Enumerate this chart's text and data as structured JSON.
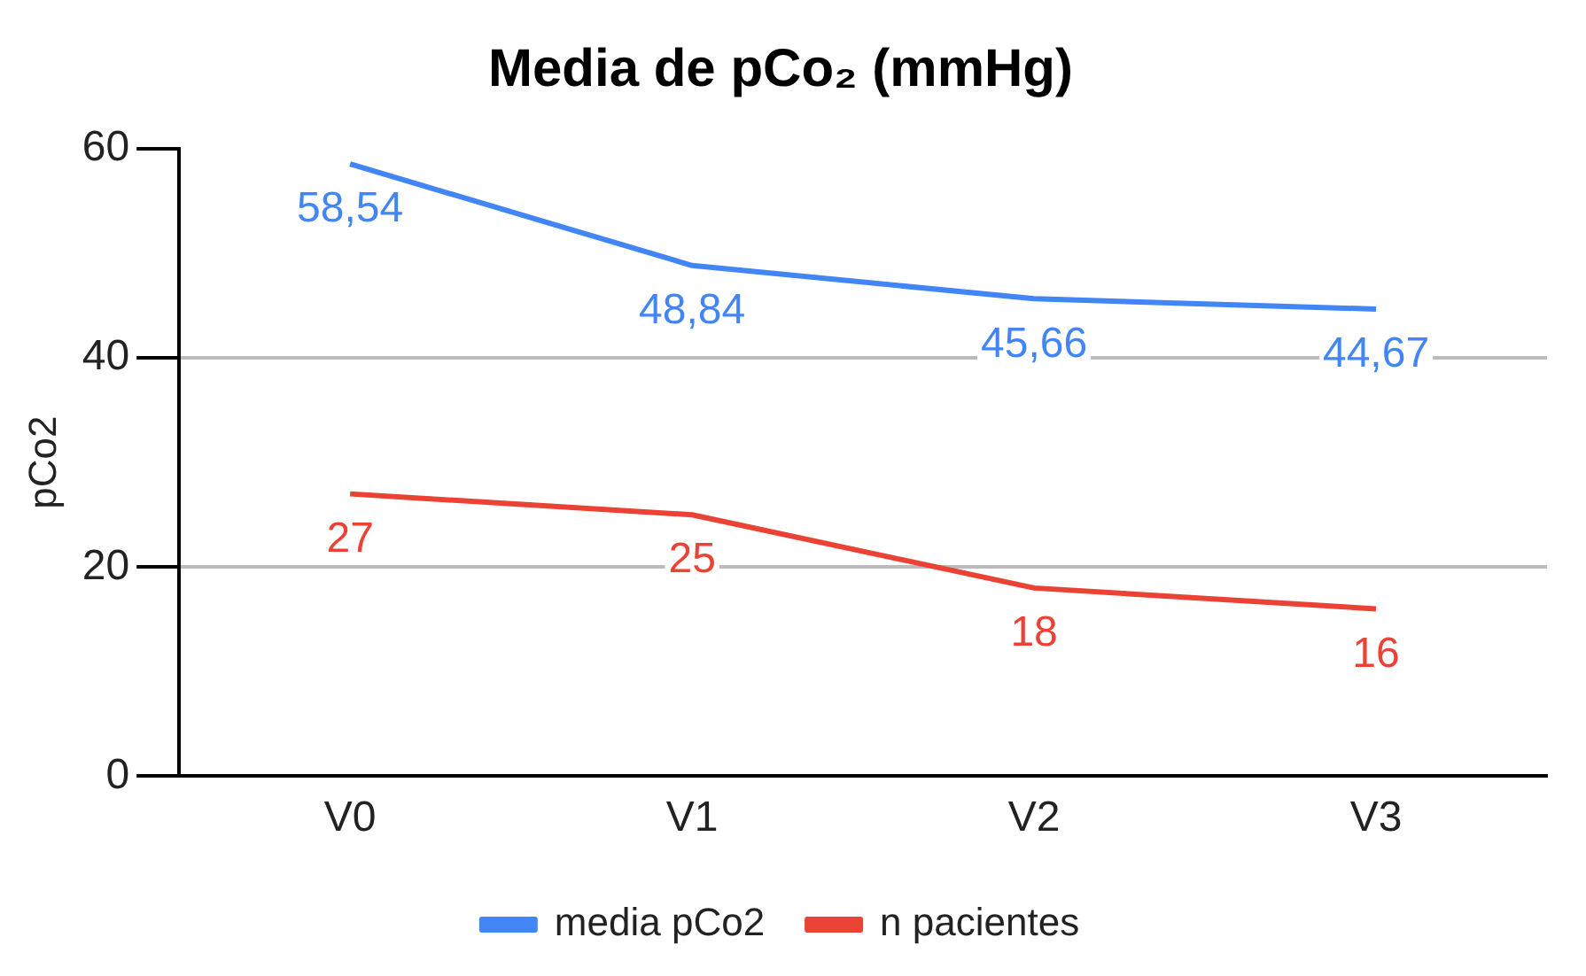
{
  "chart_data": {
    "type": "line",
    "title": "Media de pCo₂ (mmHg)",
    "ylabel": "pCo2",
    "categories": [
      "V0",
      "V1",
      "V2",
      "V3"
    ],
    "series": [
      {
        "name": "media pCo2",
        "color": "#4285f4",
        "values": [
          58.54,
          48.84,
          45.66,
          44.67
        ],
        "value_labels": [
          "58,54",
          "48,84",
          "45,66",
          "44,67"
        ]
      },
      {
        "name": "n pacientes",
        "color": "#ea4335",
        "values": [
          27,
          25,
          18,
          16
        ],
        "value_labels": [
          "27",
          "25",
          "18",
          "16"
        ]
      }
    ],
    "ylim": [
      0,
      60
    ],
    "yticks": [
      0,
      20,
      40,
      60
    ],
    "grid": "y",
    "legend": "bottom",
    "marker": "none",
    "line_style": "solid"
  }
}
